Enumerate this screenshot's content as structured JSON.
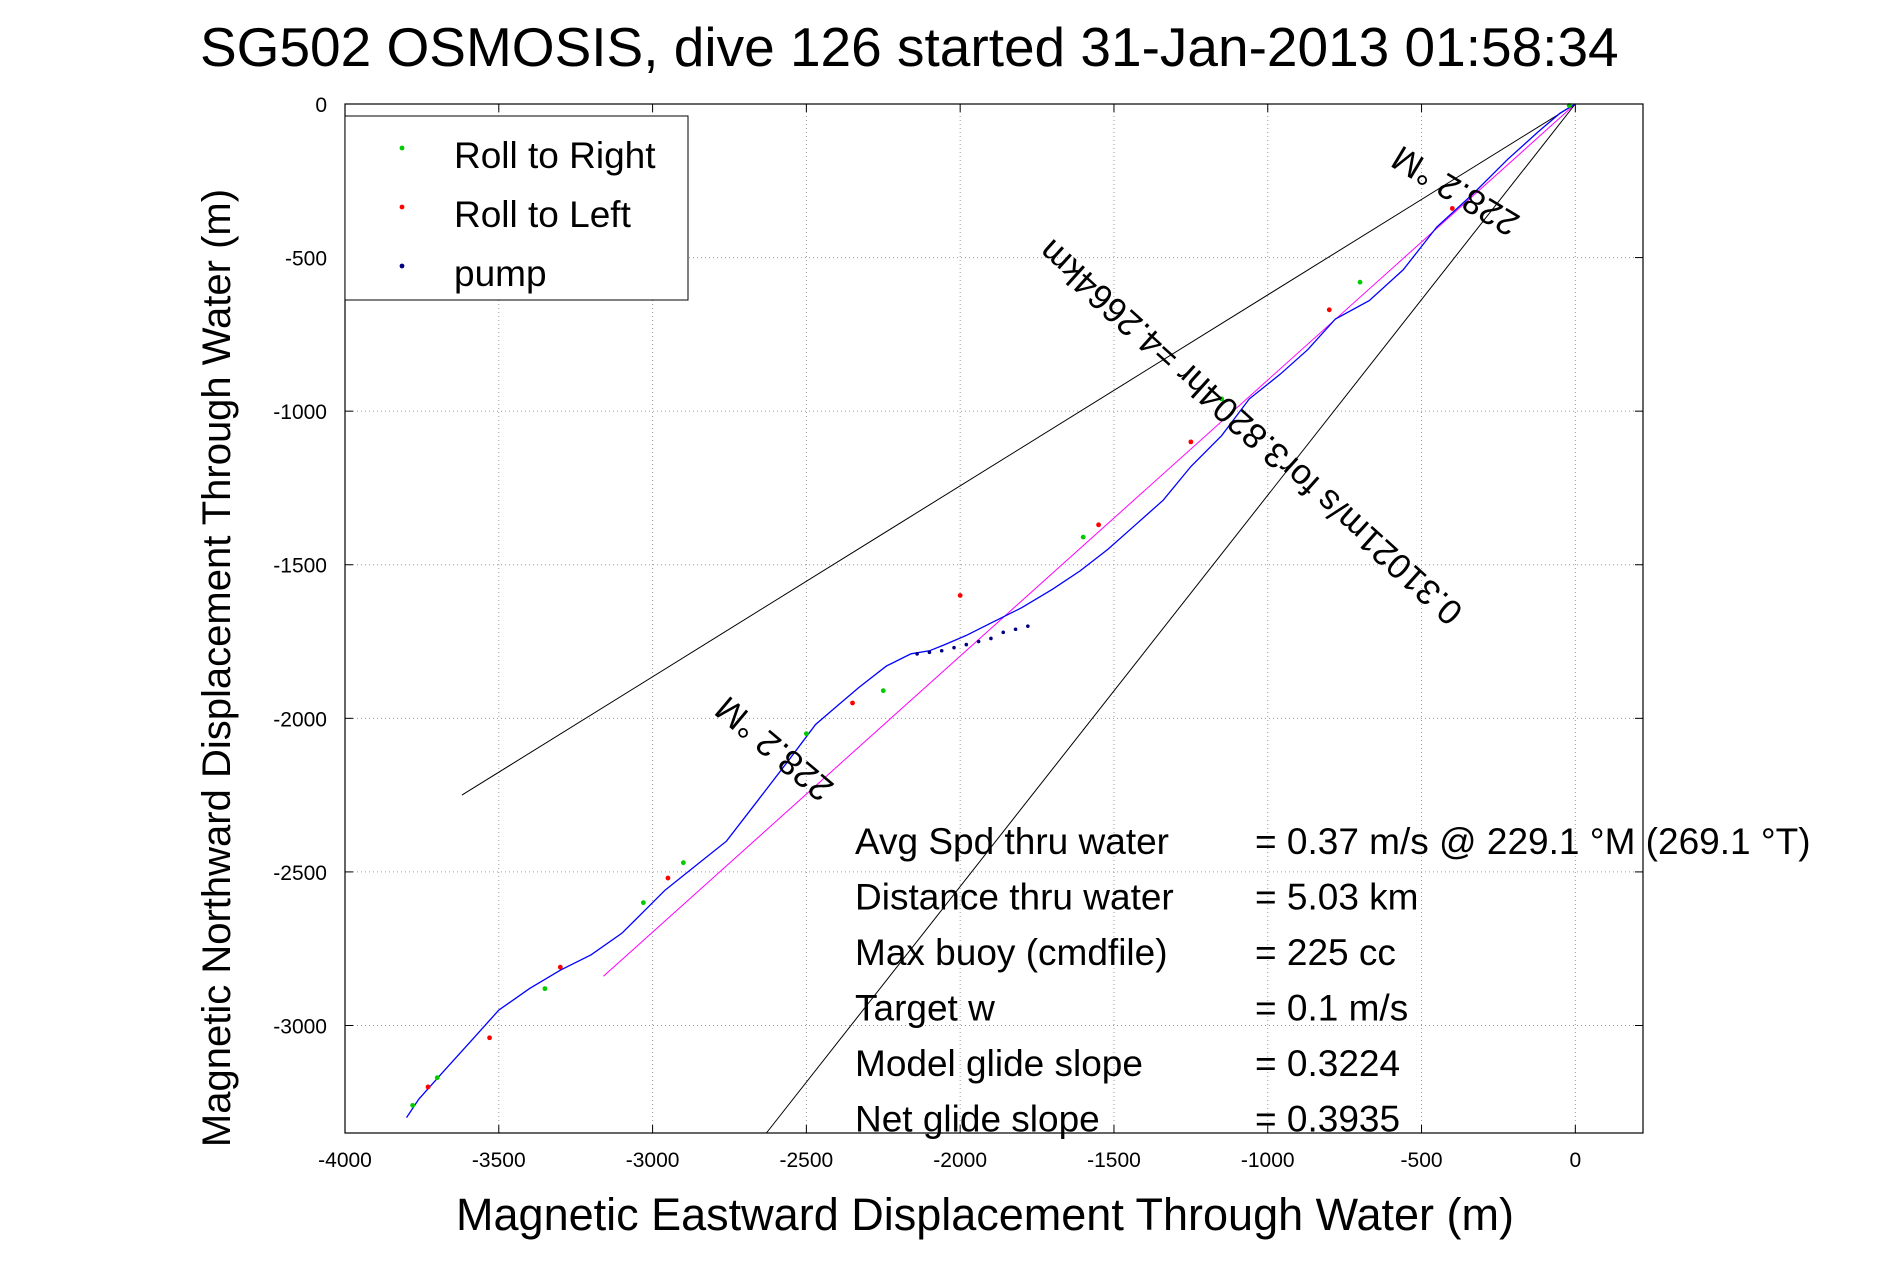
{
  "chart_data": {
    "type": "line",
    "title": "SG502 OSMOSIS, dive 126 started 31-Jan-2013 01:58:34",
    "xlabel": "Magnetic Eastward Displacement Through Water (m)",
    "ylabel": "Magnetic Northward Displacement Through Water (m)",
    "xlim": [
      -4000,
      220
    ],
    "ylim": [
      -3350,
      0
    ],
    "xticks": [
      -4000,
      -3500,
      -3000,
      -2500,
      -2000,
      -1500,
      -1000,
      -500,
      0
    ],
    "xtick_labels": [
      "-4000",
      "-3500",
      "-3000",
      "-2500",
      "-2000",
      "-1500",
      "-1000",
      "-500",
      "0"
    ],
    "yticks": [
      0,
      -500,
      -1000,
      -1500,
      -2000,
      -2500,
      -3000
    ],
    "ytick_labels": [
      "0",
      "-500",
      "-1000",
      "-1500",
      "-2000",
      "-2500",
      "-3000"
    ],
    "grid": true,
    "legend_position": "top-left",
    "legend": [
      {
        "label": "Roll to Right",
        "color": "#00cc00"
      },
      {
        "label": "Roll to Left",
        "color": "#ff0000"
      },
      {
        "label": "pump",
        "color": "#000080"
      }
    ],
    "series": [
      {
        "name": "track",
        "color": "#0000ff",
        "x": [
          0,
          -50,
          -120,
          -220,
          -330,
          -450,
          -560,
          -670,
          -780,
          -870,
          -960,
          -1060,
          -1150,
          -1250,
          -1340,
          -1430,
          -1520,
          -1610,
          -1700,
          -1800,
          -1900,
          -1980,
          -2050,
          -2100,
          -2160,
          -2240,
          -2330,
          -2400,
          -2470,
          -2560,
          -2660,
          -2760,
          -2860,
          -2960,
          -3030,
          -3100,
          -3200,
          -3300,
          -3400,
          -3500,
          -3590,
          -3680,
          -3760,
          -3800
        ],
        "y": [
          0,
          -30,
          -90,
          -180,
          -290,
          -400,
          -540,
          -640,
          -700,
          -800,
          -880,
          -960,
          -1080,
          -1180,
          -1290,
          -1370,
          -1450,
          -1520,
          -1580,
          -1640,
          -1690,
          -1730,
          -1760,
          -1780,
          -1790,
          -1830,
          -1900,
          -1960,
          -2020,
          -2140,
          -2270,
          -2400,
          -2480,
          -2560,
          -2630,
          -2700,
          -2770,
          -2820,
          -2880,
          -2950,
          -3050,
          -3150,
          -3240,
          -3300
        ]
      },
      {
        "name": "heading line",
        "color": "#ff00ff",
        "x": [
          0,
          -3160
        ],
        "y": [
          0,
          -2840
        ]
      },
      {
        "name": "bound line upper",
        "color": "#000000",
        "x": [
          0,
          -3620
        ],
        "y": [
          0,
          -2250
        ]
      },
      {
        "name": "bound line lower",
        "color": "#000000",
        "x": [
          0,
          -2630
        ],
        "y": [
          0,
          -3350
        ]
      }
    ],
    "markers": {
      "roll_right": {
        "x": [
          -20,
          -700,
          -1150,
          -1600,
          -2250,
          -2500,
          -2900,
          -3030,
          -3350,
          -3700,
          -3780
        ],
        "y": [
          -5,
          -580,
          -960,
          -1410,
          -1910,
          -2050,
          -2470,
          -2600,
          -2880,
          -3170,
          -3260
        ]
      },
      "roll_left": {
        "x": [
          -400,
          -800,
          -1250,
          -1550,
          -2000,
          -2350,
          -2950,
          -3300,
          -3530,
          -3730
        ],
        "y": [
          -340,
          -670,
          -1100,
          -1370,
          -1600,
          -1950,
          -2520,
          -2810,
          -3040,
          -3200
        ]
      },
      "pump": {
        "x": [
          -1780,
          -1820,
          -1860,
          -1900,
          -1940,
          -1980,
          -2020,
          -2060,
          -2100,
          -2140
        ],
        "y": [
          -1700,
          -1710,
          -1720,
          -1740,
          -1750,
          -1760,
          -1770,
          -1780,
          -1785,
          -1790
        ]
      }
    },
    "annotations": [
      {
        "text": "228.2 °M",
        "x": -370,
        "y": -250,
        "rotation_deg": 211
      },
      {
        "text": "0.31021m/s for3.8204hr =4.2664km",
        "x": -1030,
        "y": -1040,
        "rotation_deg": 222
      },
      {
        "text": "228.2 °M",
        "x": -2580,
        "y": -2070,
        "rotation_deg": 220
      }
    ],
    "stats": [
      {
        "label": "Avg Spd thru water",
        "value": "=  0.37 m/s @ 229.1 °M (269.1 °T)"
      },
      {
        "label": "Distance thru water",
        "value": "=  5.03 km"
      },
      {
        "label": "Max buoy (cmdfile)",
        "value": "= 225 cc"
      },
      {
        "label": "Target w",
        "value": "= 0.1 m/s"
      },
      {
        "label": "Model glide slope",
        "value": "= 0.3224"
      },
      {
        "label": "Net glide slope",
        "value": "= 0.3935"
      }
    ]
  }
}
